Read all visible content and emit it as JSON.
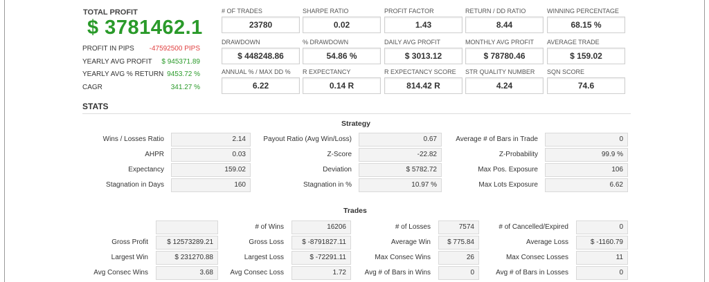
{
  "summary": {
    "total_profit_label": "TOTAL PROFIT",
    "total_profit_value": "$ 3781462.1",
    "rows": [
      {
        "label": "PROFIT IN PIPS",
        "value": "-47592500 PIPS",
        "color": "#e04040"
      },
      {
        "label": "YEARLY AVG PROFIT",
        "value": "$ 945371.89",
        "color": "#2a9a2a"
      },
      {
        "label": "YEARLY AVG % RETURN",
        "value": "9453.72 %",
        "color": "#2a9a2a"
      },
      {
        "label": "CAGR",
        "value": "341.27 %",
        "color": "#2a9a2a"
      }
    ]
  },
  "metrics": [
    {
      "label": "# OF TRADES",
      "value": "23780"
    },
    {
      "label": "SHARPE RATIO",
      "value": "0.02"
    },
    {
      "label": "PROFIT FACTOR",
      "value": "1.43"
    },
    {
      "label": "RETURN / DD RATIO",
      "value": "8.44"
    },
    {
      "label": "WINNING PERCENTAGE",
      "value": "68.15 %"
    },
    {
      "label": "DRAWDOWN",
      "value": "$ 448248.86"
    },
    {
      "label": "% DRAWDOWN",
      "value": "54.86 %"
    },
    {
      "label": "DAILY AVG PROFIT",
      "value": "$ 3013.12"
    },
    {
      "label": "MONTHLY AVG PROFIT",
      "value": "$ 78780.46"
    },
    {
      "label": "AVERAGE TRADE",
      "value": "$ 159.02"
    },
    {
      "label": "ANNUAL % / MAX DD %",
      "value": "6.22"
    },
    {
      "label": "R EXPECTANCY",
      "value": "0.14 R"
    },
    {
      "label": "R EXPECTANCY SCORE",
      "value": "814.42 R"
    },
    {
      "label": "STR QUALITY NUMBER",
      "value": "4.24"
    },
    {
      "label": "SQN SCORE",
      "value": "74.6"
    }
  ],
  "stats_title": "STATS",
  "strategy": {
    "title": "Strategy",
    "rows": [
      [
        {
          "label": "Wins / Losses Ratio",
          "value": "2.14"
        },
        {
          "label": "Payout Ratio (Avg Win/Loss)",
          "value": "0.67"
        },
        {
          "label": "Average # of Bars in Trade",
          "value": "0"
        }
      ],
      [
        {
          "label": "AHPR",
          "value": "0.03"
        },
        {
          "label": "Z-Score",
          "value": "-22.82"
        },
        {
          "label": "Z-Probability",
          "value": "99.9 %"
        }
      ],
      [
        {
          "label": "Expectancy",
          "value": "159.02"
        },
        {
          "label": "Deviation",
          "value": "$ 5782.72"
        },
        {
          "label": "Max Pos. Exposure",
          "value": "106"
        }
      ],
      [
        {
          "label": "Stagnation in Days",
          "value": "160"
        },
        {
          "label": "Stagnation in %",
          "value": "10.97 %"
        },
        {
          "label": "Max Lots Exposure",
          "value": "6.62"
        }
      ]
    ]
  },
  "trades": {
    "title": "Trades",
    "rows": [
      [
        {
          "label": "",
          "value": ""
        },
        {
          "label": "# of Wins",
          "value": "16206"
        },
        {
          "label": "# of Losses",
          "value": "7574"
        },
        {
          "label": "# of Cancelled/Expired",
          "value": "0"
        }
      ],
      [
        {
          "label": "Gross Profit",
          "value": "$ 12573289.21"
        },
        {
          "label": "Gross Loss",
          "value": "$ -8791827.11"
        },
        {
          "label": "Average Win",
          "value": "$ 775.84"
        },
        {
          "label": "Average Loss",
          "value": "$ -1160.79"
        }
      ],
      [
        {
          "label": "Largest Win",
          "value": "$ 231270.88"
        },
        {
          "label": "Largest Loss",
          "value": "$ -72291.11"
        },
        {
          "label": "Max Consec Wins",
          "value": "26"
        },
        {
          "label": "Max Consec Losses",
          "value": "11"
        }
      ],
      [
        {
          "label": "Avg Consec Wins",
          "value": "3.68"
        },
        {
          "label": "Avg Consec Loss",
          "value": "1.72"
        },
        {
          "label": "Avg # of Bars in Wins",
          "value": "0"
        },
        {
          "label": "Avg # of Bars in Losses",
          "value": "0"
        }
      ]
    ]
  }
}
